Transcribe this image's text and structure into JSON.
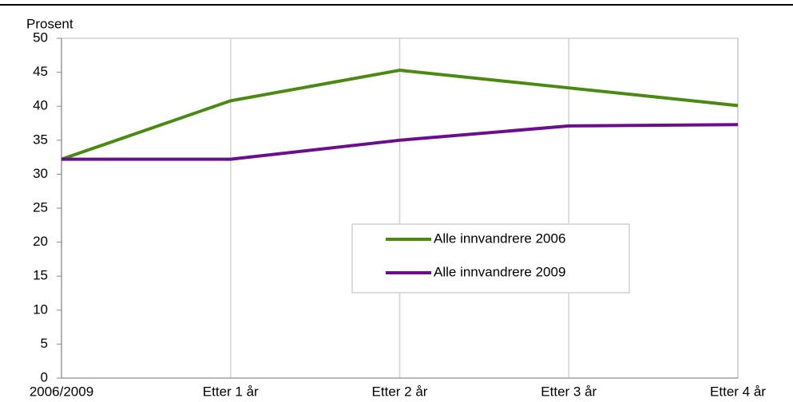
{
  "chart_data": {
    "type": "line",
    "y_label": "Prosent",
    "categories": [
      "2006/2009",
      "Etter 1 år",
      "Etter 2 år",
      "Etter 3 år",
      "Etter 4 år"
    ],
    "series": [
      {
        "name": "Alle innvandrere 2006",
        "color": "#4a8a12",
        "values": [
          32.2,
          40.8,
          45.3,
          42.7,
          40.1
        ]
      },
      {
        "name": "Alle innvandrere 2009",
        "color": "#6a0f8c",
        "values": [
          32.2,
          32.2,
          35.0,
          37.1,
          37.3
        ]
      }
    ],
    "ylim": [
      0,
      50
    ],
    "yticks": [
      0,
      5,
      10,
      15,
      20,
      25,
      30,
      35,
      40,
      45,
      50
    ],
    "grid": true
  }
}
